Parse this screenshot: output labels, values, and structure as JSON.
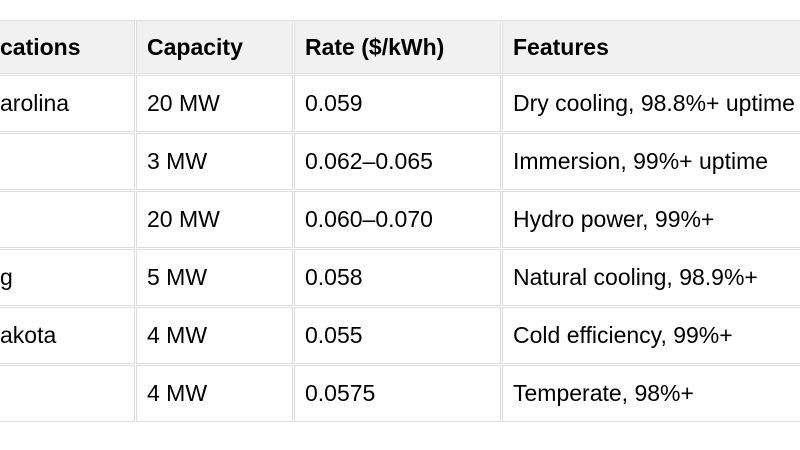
{
  "colors": {
    "page_bg": "#ffffff",
    "header_bg": "#f1f1f1",
    "border": "#dedede",
    "text": "#000000"
  },
  "table": {
    "headers": [
      "cations",
      "Capacity",
      "Rate ($/kWh)",
      "Features"
    ],
    "rows": [
      [
        "arolina",
        "20 MW",
        "0.059",
        "Dry cooling, 98.8%+ uptime"
      ],
      [
        "",
        "3 MW",
        "0.062–0.065",
        "Immersion, 99%+ uptime"
      ],
      [
        "",
        "20 MW",
        "0.060–0.070",
        "Hydro power, 99%+"
      ],
      [
        "g",
        "5 MW",
        "0.058",
        "Natural cooling, 98.9%+"
      ],
      [
        "akota",
        "4 MW",
        "0.055",
        "Cold efficiency, 99%+"
      ],
      [
        "",
        "4 MW",
        "0.0575",
        "Temperate, 98%+"
      ]
    ]
  }
}
